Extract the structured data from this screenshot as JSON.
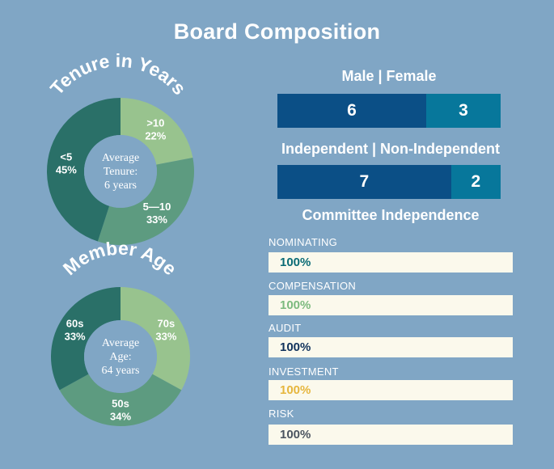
{
  "title": "Board Composition",
  "chart_data": [
    {
      "type": "pie",
      "title": "Tenure in Years",
      "center_text": [
        "Average",
        "Tenure:",
        "6 years"
      ],
      "slices": [
        {
          "label": ">10",
          "pct_text": "22%",
          "value": 22,
          "color": "#98c38e"
        },
        {
          "label": "5—10",
          "pct_text": "33%",
          "value": 33,
          "color": "#5d9b80"
        },
        {
          "label": "<5",
          "pct_text": "45%",
          "value": 45,
          "color": "#2a7068"
        }
      ]
    },
    {
      "type": "pie",
      "title": "Member Age",
      "center_text": [
        "Average",
        "Age:",
        "64 years"
      ],
      "slices": [
        {
          "label": "70s",
          "pct_text": "33%",
          "value": 33,
          "color": "#98c38e"
        },
        {
          "label": "50s",
          "pct_text": "34%",
          "value": 34,
          "color": "#5d9b80"
        },
        {
          "label": "60s",
          "pct_text": "33%",
          "value": 33,
          "color": "#2a7068"
        }
      ]
    },
    {
      "type": "bar",
      "title": "Male | Female",
      "categories": [
        "Male",
        "Female"
      ],
      "values": [
        6,
        3
      ],
      "colors": [
        "#0b4f86",
        "#07779b"
      ]
    },
    {
      "type": "bar",
      "title": "Independent | Non-Independent",
      "categories": [
        "Independent",
        "Non-Independent"
      ],
      "values": [
        7,
        2
      ],
      "colors": [
        "#0b4f86",
        "#07779b"
      ]
    },
    {
      "type": "bar",
      "title": "Committee Independence",
      "categories": [
        "NOMINATING",
        "COMPENSATION",
        "AUDIT",
        "INVESTMENT",
        "RISK"
      ],
      "values": [
        100,
        100,
        100,
        100,
        100
      ],
      "value_labels": [
        "100%",
        "100%",
        "100%",
        "100%",
        "100%"
      ],
      "colors": [
        "#0a6b75",
        "#7cba7e",
        "#12335c",
        "#e6b63d",
        "#4c5560"
      ]
    }
  ]
}
